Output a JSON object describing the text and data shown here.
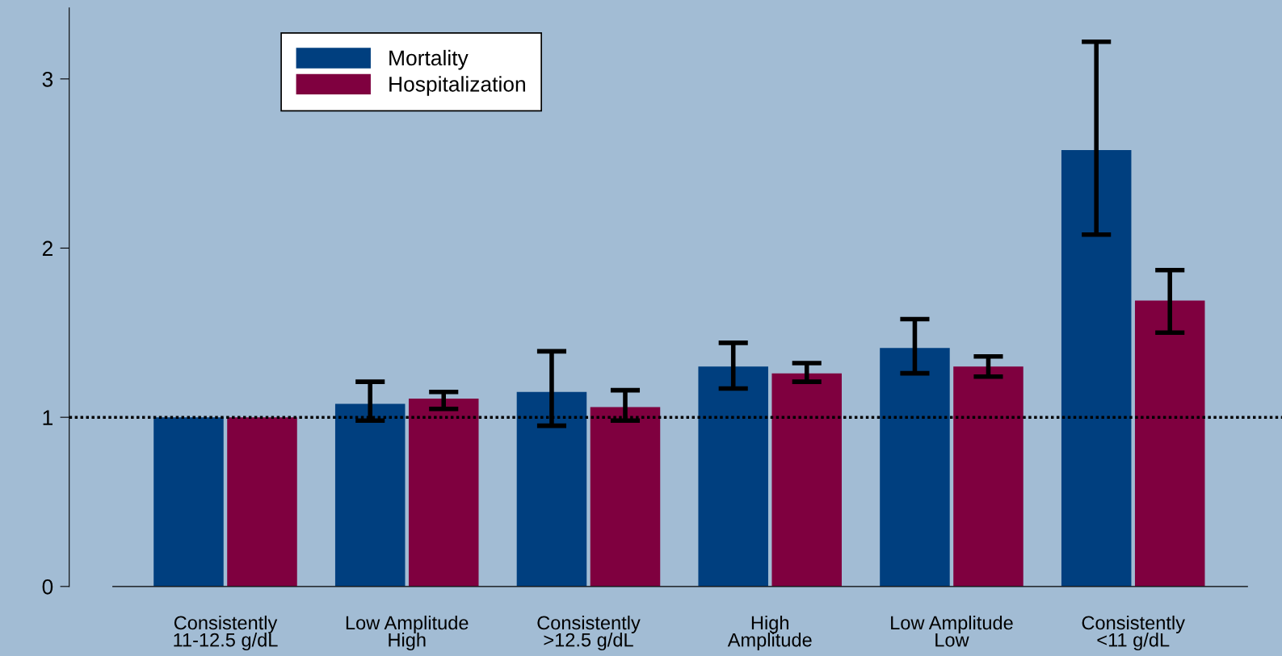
{
  "chart_data": {
    "type": "bar",
    "categories": [
      "Consistently\n11-12.5 g/dL",
      "Low Amplitude\nHigh",
      "Consistently\n>12.5 g/dL",
      "High\nAmplitude",
      "Low Amplitude\nLow",
      "Consistently\n<11 g/dL"
    ],
    "series": [
      {
        "name": "Mortality",
        "color": "#003f7f",
        "values": [
          1.0,
          1.08,
          1.15,
          1.3,
          1.41,
          2.58
        ],
        "errors": [
          null,
          [
            0.98,
            1.21
          ],
          [
            0.95,
            1.39
          ],
          [
            1.17,
            1.44
          ],
          [
            1.26,
            1.58
          ],
          [
            2.08,
            3.22
          ]
        ]
      },
      {
        "name": "Hospitalization",
        "color": "#7f003f",
        "values": [
          1.0,
          1.11,
          1.06,
          1.26,
          1.3,
          1.69
        ],
        "errors": [
          null,
          [
            1.05,
            1.15
          ],
          [
            0.98,
            1.16
          ],
          [
            1.21,
            1.32
          ],
          [
            1.24,
            1.36
          ],
          [
            1.5,
            1.87
          ]
        ]
      }
    ],
    "ylim": [
      0,
      3.42
    ],
    "yticks": [
      0,
      1,
      2,
      3
    ],
    "ref_lines": [
      {
        "axis": "y",
        "value": 1,
        "color": "#000000",
        "line_style": "dotted"
      }
    ],
    "legend": "top left",
    "grid": false
  }
}
